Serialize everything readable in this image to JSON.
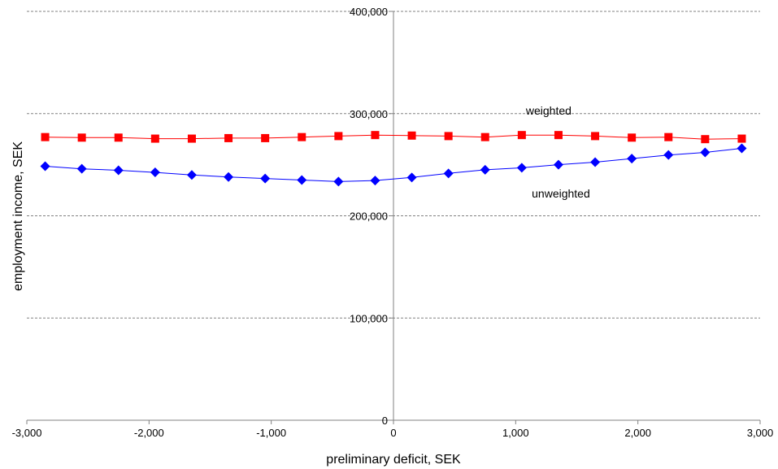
{
  "chart_data": {
    "type": "line",
    "title": "",
    "xlabel": "preliminary deficit, SEK",
    "ylabel": "employment income, SEK",
    "xlim": [
      -3000,
      3000
    ],
    "ylim": [
      0,
      400000
    ],
    "grid": "horizontal-dashed",
    "x_ticks": [
      -3000,
      -2000,
      -1000,
      0,
      1000,
      2000,
      3000
    ],
    "x_tick_labels": [
      "-3,000",
      "-2,000",
      "-1,000",
      "0",
      "1,000",
      "2,000",
      "3,000"
    ],
    "y_ticks": [
      0,
      100000,
      200000,
      300000,
      400000
    ],
    "y_tick_labels": [
      "0",
      "100,000",
      "200,000",
      "300,000",
      "400,000"
    ],
    "x": [
      -2850,
      -2550,
      -2250,
      -1950,
      -1650,
      -1350,
      -1050,
      -750,
      -450,
      -150,
      150,
      450,
      750,
      1050,
      1350,
      1650,
      1950,
      2250,
      2550,
      2850
    ],
    "series": [
      {
        "name": "weighted",
        "color": "#ff0000",
        "marker": "square",
        "values": [
          277000,
          276500,
          276500,
          275500,
          275500,
          276000,
          276000,
          277000,
          278000,
          279000,
          278500,
          278000,
          277000,
          279000,
          279000,
          278000,
          276500,
          277000,
          275000,
          275500
        ]
      },
      {
        "name": "unweighted",
        "color": "#0000ff",
        "marker": "diamond",
        "values": [
          248500,
          246000,
          244500,
          242500,
          240000,
          238000,
          236500,
          235000,
          233500,
          234500,
          237500,
          241500,
          245000,
          247000,
          250000,
          252500,
          256000,
          259500,
          262000,
          266000
        ]
      }
    ],
    "annotations": [
      {
        "text": "weighted",
        "x": 1270,
        "y": 299000
      },
      {
        "text": "unweighted",
        "x": 1370,
        "y": 218000
      }
    ]
  }
}
